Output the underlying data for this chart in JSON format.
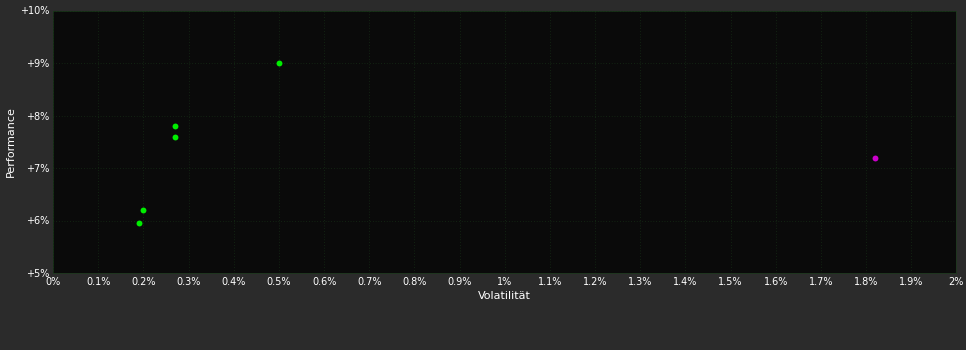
{
  "background_color": "#2b2b2b",
  "plot_bg_color": "#0a0a0a",
  "grid_color": "#1a3a1a",
  "text_color": "#ffffff",
  "xlabel": "Volatilität",
  "ylabel": "Performance",
  "xlim": [
    0.0,
    0.02
  ],
  "ylim": [
    0.05,
    0.1
  ],
  "x_ticks": [
    0.0,
    0.001,
    0.002,
    0.003,
    0.004,
    0.005,
    0.006,
    0.007,
    0.008,
    0.009,
    0.01,
    0.011,
    0.012,
    0.013,
    0.014,
    0.015,
    0.016,
    0.017,
    0.018,
    0.019,
    0.02
  ],
  "y_ticks": [
    0.05,
    0.06,
    0.07,
    0.08,
    0.09,
    0.1
  ],
  "green_points": [
    [
      0.0019,
      0.0595
    ],
    [
      0.002,
      0.062
    ],
    [
      0.0027,
      0.076
    ],
    [
      0.0027,
      0.078
    ],
    [
      0.005,
      0.09
    ]
  ],
  "magenta_points": [
    [
      0.0182,
      0.072
    ]
  ],
  "green_color": "#00ee00",
  "magenta_color": "#cc00cc",
  "point_size": 18,
  "axis_fontsize": 8,
  "tick_fontsize": 7
}
